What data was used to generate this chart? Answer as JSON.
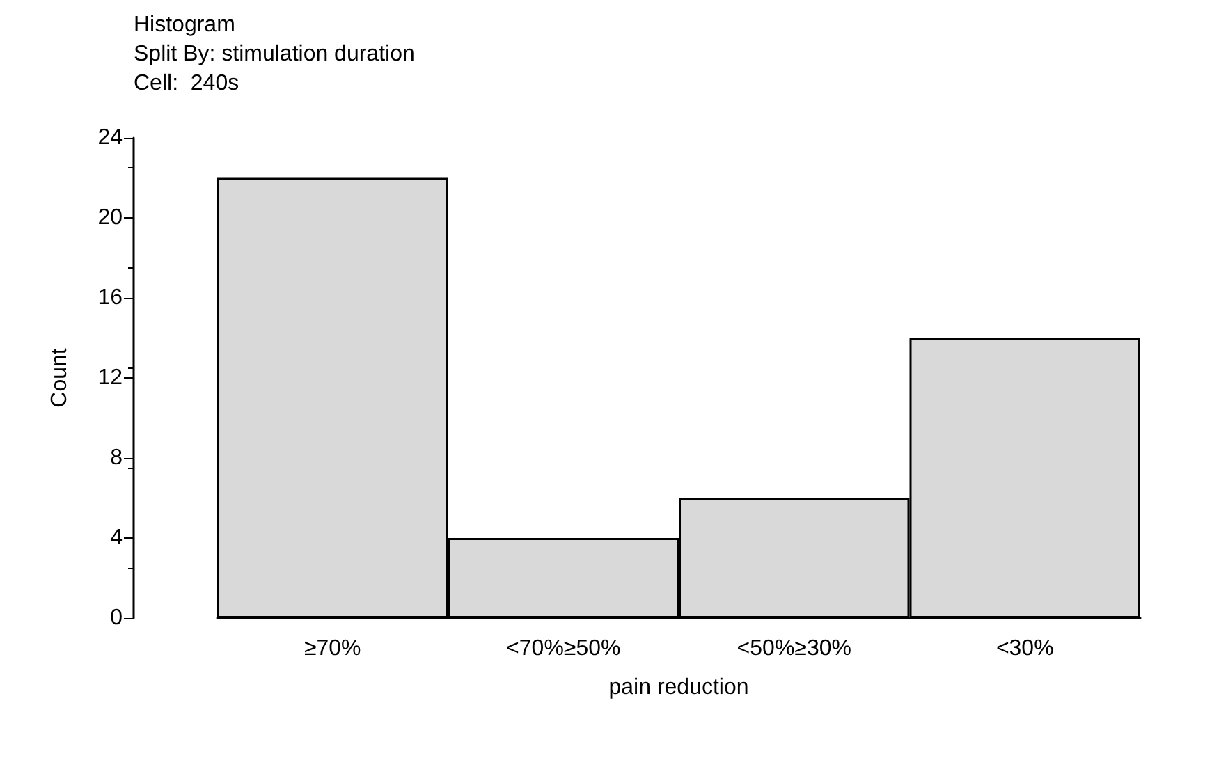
{
  "chart_data": {
    "type": "bar",
    "title": "Histogram",
    "subtitle": "Split By: stimulation duration",
    "annotations": [
      "Cell:  240s"
    ],
    "categories": [
      "≥70%",
      "<70%≥50%",
      "<50%≥30%",
      "<30%"
    ],
    "values": [
      22,
      4,
      6,
      14
    ],
    "color": "#d9d9d9",
    "xlabel": "pain reduction",
    "ylabel": "Count",
    "ylim": [
      0,
      24
    ],
    "yticks": [
      0,
      4,
      8,
      12,
      16,
      20,
      24
    ],
    "grid": false
  }
}
